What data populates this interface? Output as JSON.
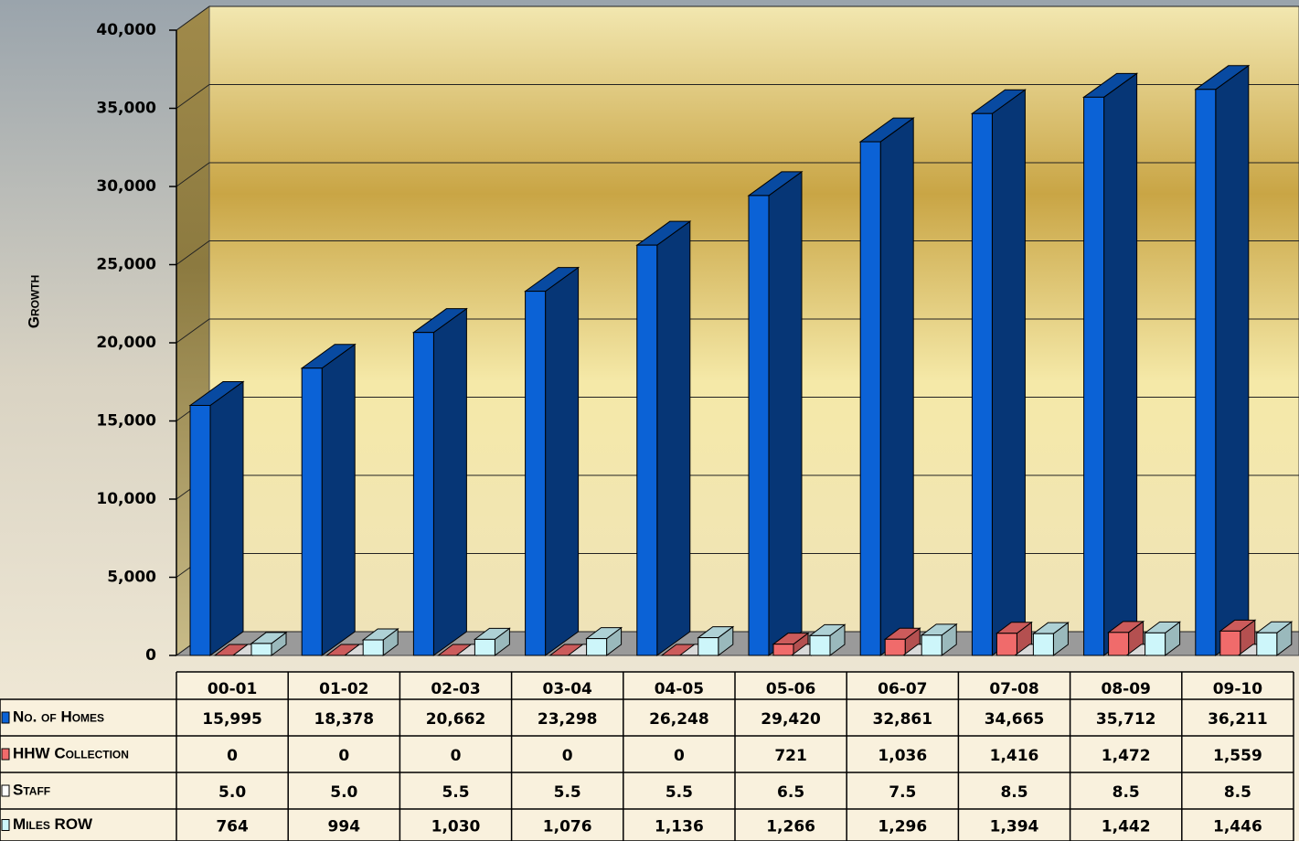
{
  "chart_data": {
    "type": "bar3d",
    "y_label": "Growth",
    "categories": [
      "00-01",
      "01-02",
      "02-03",
      "03-04",
      "04-05",
      "05-06",
      "06-07",
      "07-08",
      "08-09",
      "09-10"
    ],
    "series": [
      {
        "name": "No. of Homes",
        "color": "#0b62d6",
        "values": [
          15995,
          18378,
          20662,
          23298,
          26248,
          29420,
          32861,
          34665,
          35712,
          36211
        ],
        "value_labels": [
          "15,995",
          "18,378",
          "20,662",
          "23,298",
          "26,248",
          "29,420",
          "32,861",
          "34,665",
          "35,712",
          "36,211"
        ]
      },
      {
        "name": "HHW Collection",
        "color": "#f06b6b",
        "values": [
          0,
          0,
          0,
          0,
          0,
          721,
          1036,
          1416,
          1472,
          1559
        ],
        "value_labels": [
          "0",
          "0",
          "0",
          "0",
          "0",
          "721",
          "1,036",
          "1,416",
          "1,472",
          "1,559"
        ]
      },
      {
        "name": "Staff",
        "color": "#ffffff",
        "values": [
          5,
          5,
          5.5,
          5.5,
          5.5,
          6.5,
          7.5,
          8.5,
          8.5,
          8.5
        ],
        "value_labels": [
          "5.0",
          "5.0",
          "5.5",
          "5.5",
          "5.5",
          "6.5",
          "7.5",
          "8.5",
          "8.5",
          "8.5"
        ]
      },
      {
        "name": "Miles ROW",
        "color": "#cdf6fa",
        "values": [
          764,
          994,
          1030,
          1076,
          1136,
          1266,
          1296,
          1394,
          1442,
          1446
        ],
        "value_labels": [
          "764",
          "994",
          "1,030",
          "1,076",
          "1,136",
          "1,266",
          "1,296",
          "1,394",
          "1,442",
          "1,446"
        ]
      }
    ],
    "ylim": [
      0,
      40000
    ],
    "yticks": [
      0,
      {
        "value": 5000,
        "label": "5,000"
      },
      {
        "value": 10000,
        "label": "10,000"
      },
      {
        "value": 15000,
        "label": "15,000"
      },
      {
        "value": 20000,
        "label": "20,000"
      },
      {
        "value": 25000,
        "label": "25,000"
      },
      {
        "value": 30000,
        "label": "30,000"
      },
      {
        "value": 35000,
        "label": "35,000"
      },
      {
        "value": 40000,
        "label": "40,000"
      }
    ],
    "grid": true
  }
}
